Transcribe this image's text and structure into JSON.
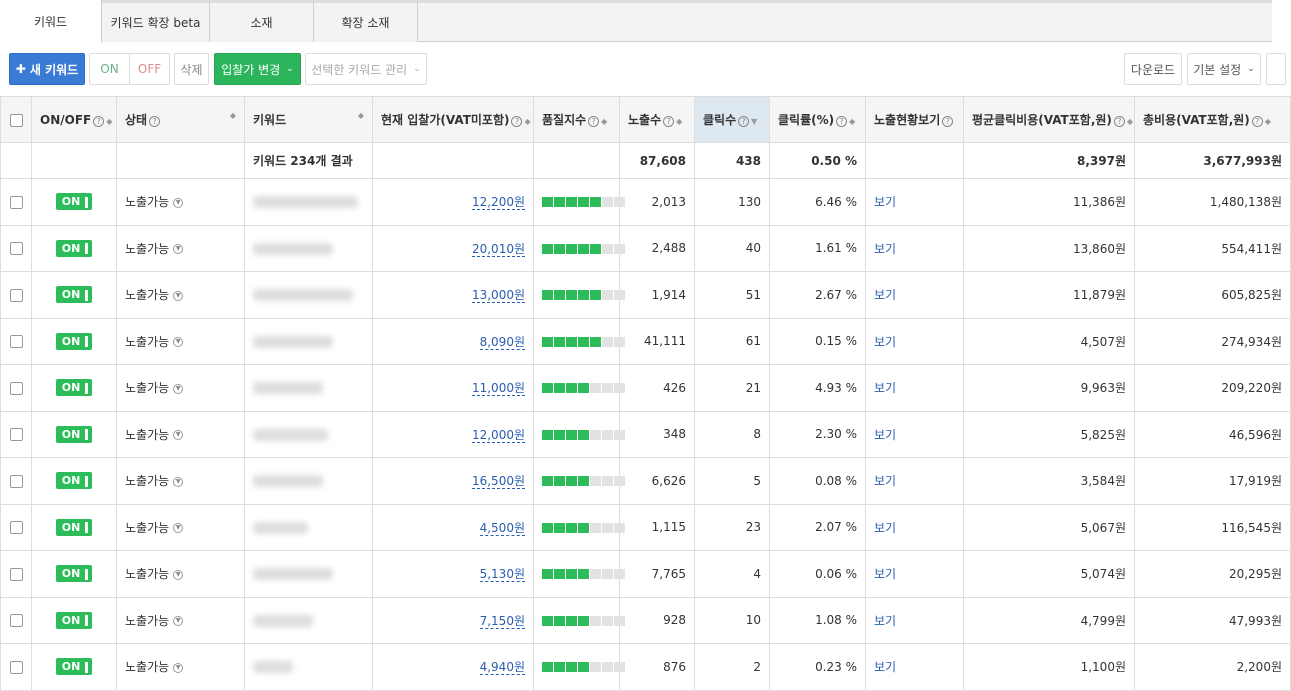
{
  "tabs": [
    {
      "label": "키워드",
      "active": true
    },
    {
      "label": "키워드 확장 beta"
    },
    {
      "label": "소재"
    },
    {
      "label": "확장 소재"
    }
  ],
  "toolbar": {
    "new_keyword": "새 키워드",
    "on": "ON",
    "off": "OFF",
    "delete": "삭제",
    "bid_change": "입찰가 변경",
    "manage_selected": "선택한 키워드 관리",
    "download": "다운로드",
    "default_settings": "기본 설정"
  },
  "colors": {
    "primary": "#3a7bd5",
    "green": "#2dbc5a",
    "link": "#2a5db0"
  },
  "table": {
    "headers": [
      "ON/OFF",
      "상태",
      "키워드",
      "현재 입찰가(VAT미포함)",
      "품질지수",
      "노출수",
      "클릭수",
      "클릭률(%)",
      "노출현황보기",
      "평균클릭비용(VAT포함,원)",
      "총비용(VAT포함,원)"
    ],
    "sorted_column": "클릭수",
    "summary": {
      "keyword": "키워드 234개 결과",
      "impressions": "87,608",
      "clicks": "438",
      "ctr": "0.50 %",
      "avg_cpc": "8,397원",
      "total": "3,677,993원"
    },
    "rows": [
      {
        "onoff": "ON",
        "status": "노출가능",
        "bid": "12,200원",
        "quality": 5,
        "impressions": "2,013",
        "clicks": "130",
        "ctr": "6.46 %",
        "view": "보기",
        "avg_cpc": "11,386원",
        "total": "1,480,138원"
      },
      {
        "onoff": "ON",
        "status": "노출가능",
        "bid": "20,010원",
        "quality": 5,
        "impressions": "2,488",
        "clicks": "40",
        "ctr": "1.61 %",
        "view": "보기",
        "avg_cpc": "13,860원",
        "total": "554,411원"
      },
      {
        "onoff": "ON",
        "status": "노출가능",
        "bid": "13,000원",
        "quality": 5,
        "impressions": "1,914",
        "clicks": "51",
        "ctr": "2.67 %",
        "view": "보기",
        "avg_cpc": "11,879원",
        "total": "605,825원"
      },
      {
        "onoff": "ON",
        "status": "노출가능",
        "bid": "8,090원",
        "quality": 5,
        "impressions": "41,111",
        "clicks": "61",
        "ctr": "0.15 %",
        "view": "보기",
        "avg_cpc": "4,507원",
        "total": "274,934원"
      },
      {
        "onoff": "ON",
        "status": "노출가능",
        "bid": "11,000원",
        "quality": 4,
        "impressions": "426",
        "clicks": "21",
        "ctr": "4.93 %",
        "view": "보기",
        "avg_cpc": "9,963원",
        "total": "209,220원"
      },
      {
        "onoff": "ON",
        "status": "노출가능",
        "bid": "12,000원",
        "quality": 4,
        "impressions": "348",
        "clicks": "8",
        "ctr": "2.30 %",
        "view": "보기",
        "avg_cpc": "5,825원",
        "total": "46,596원"
      },
      {
        "onoff": "ON",
        "status": "노출가능",
        "bid": "16,500원",
        "quality": 4,
        "impressions": "6,626",
        "clicks": "5",
        "ctr": "0.08 %",
        "view": "보기",
        "avg_cpc": "3,584원",
        "total": "17,919원"
      },
      {
        "onoff": "ON",
        "status": "노출가능",
        "bid": "4,500원",
        "quality": 4,
        "impressions": "1,115",
        "clicks": "23",
        "ctr": "2.07 %",
        "view": "보기",
        "avg_cpc": "5,067원",
        "total": "116,545원"
      },
      {
        "onoff": "ON",
        "status": "노출가능",
        "bid": "5,130원",
        "quality": 4,
        "impressions": "7,765",
        "clicks": "4",
        "ctr": "0.06 %",
        "view": "보기",
        "avg_cpc": "5,074원",
        "total": "20,295원"
      },
      {
        "onoff": "ON",
        "status": "노출가능",
        "bid": "7,150원",
        "quality": 4,
        "impressions": "928",
        "clicks": "10",
        "ctr": "1.08 %",
        "view": "보기",
        "avg_cpc": "4,799원",
        "total": "47,993원"
      },
      {
        "onoff": "ON",
        "status": "노출가능",
        "bid": "4,940원",
        "quality": 4,
        "impressions": "876",
        "clicks": "2",
        "ctr": "0.23 %",
        "view": "보기",
        "avg_cpc": "1,100원",
        "total": "2,200원"
      }
    ]
  }
}
